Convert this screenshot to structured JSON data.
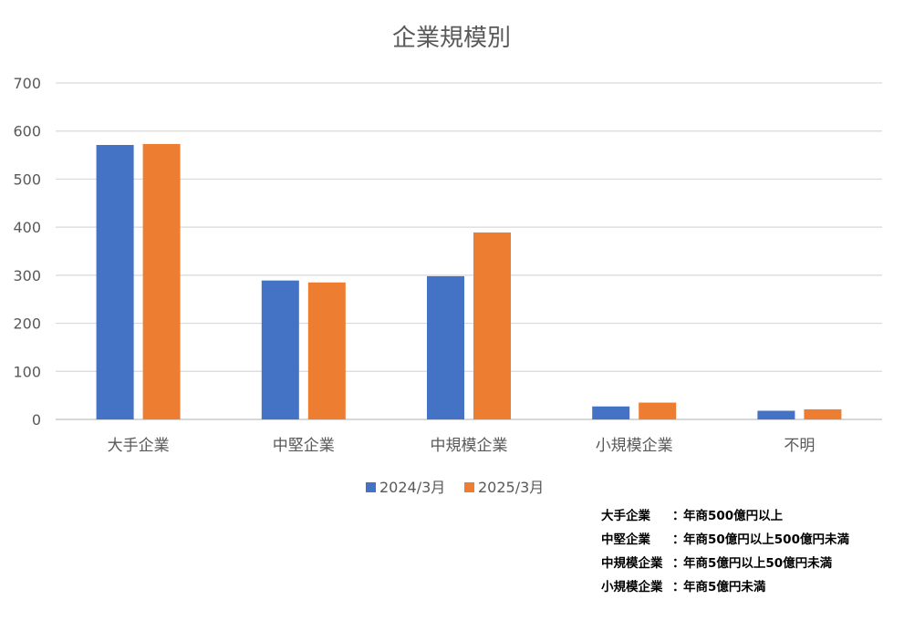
{
  "chart_data": {
    "type": "bar",
    "title": "企業規模別",
    "categories": [
      "大手企業",
      "中堅企業",
      "中規模企業",
      "小規模企業",
      "不明"
    ],
    "series": [
      {
        "name": "2024/3月",
        "color": "#4472C4",
        "values": [
          571,
          289,
          298,
          27,
          18
        ]
      },
      {
        "name": "2025/3月",
        "color": "#ED7D31",
        "values": [
          573,
          285,
          389,
          35,
          21
        ]
      }
    ],
    "ylim": [
      0,
      700
    ],
    "yticks": [
      0,
      100,
      200,
      300,
      400,
      500,
      600,
      700
    ],
    "grid": true,
    "legend_position": "bottom"
  },
  "notes": [
    {
      "label": "大手企業",
      "colon": "：",
      "text": "年商500億円以上"
    },
    {
      "label": "中堅企業",
      "colon": "：",
      "text": "年商50億円以上500億円未満"
    },
    {
      "label": "中規模企業",
      "colon": "：",
      "text": "年商5億円以上50億円未満"
    },
    {
      "label": "小規模企業",
      "colon": "：",
      "text": "年商5億円未満"
    }
  ]
}
